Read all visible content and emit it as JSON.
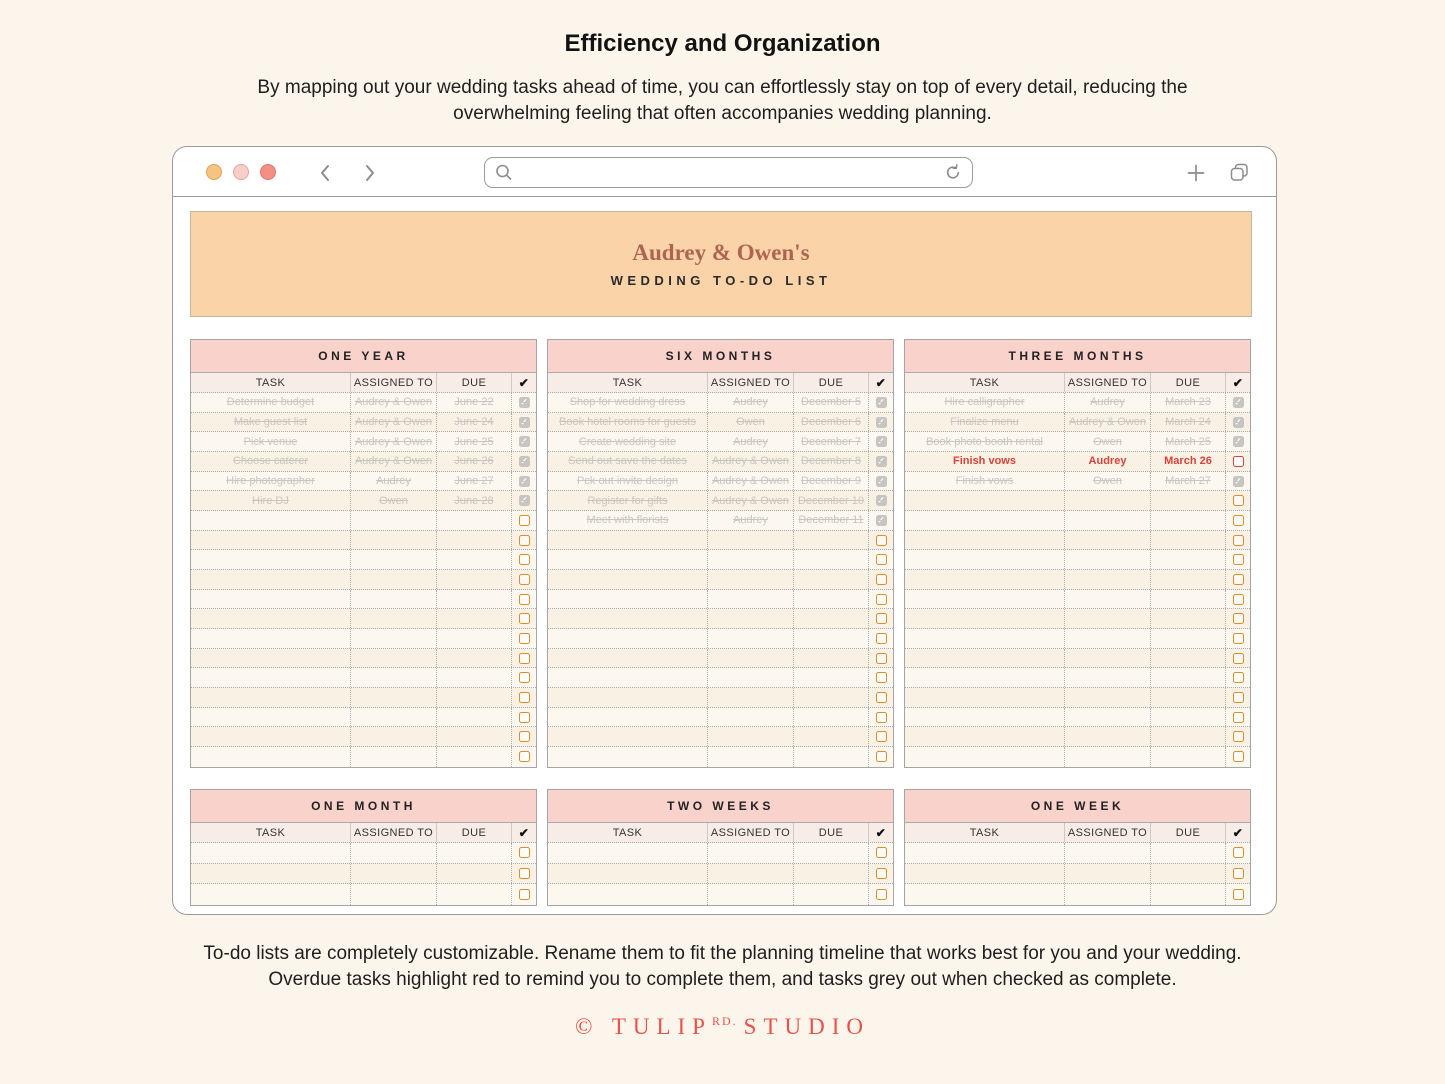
{
  "header": {
    "title": "Efficiency and Organization",
    "intro_lines": [
      "By mapping out your wedding tasks ahead of time, you can effortlessly stay on top of every detail, reducing the",
      "overwhelming feeling that often accompanies wedding planning."
    ]
  },
  "browser": {
    "search_value": "",
    "traffic_lights": [
      "orange",
      "pink",
      "red"
    ],
    "icons": [
      "back-chevron-icon",
      "forward-chevron-icon",
      "search-icon",
      "refresh-icon",
      "plus-icon",
      "tab-overview-icon"
    ]
  },
  "banner": {
    "title": "Audrey & Owen's",
    "subtitle": "WEDDING TO-DO LIST"
  },
  "table": {
    "columns": [
      "TASK",
      "ASSIGNED TO",
      "DUE",
      "✔"
    ],
    "check_glyph": "✓"
  },
  "panels": [
    {
      "title": "ONE YEAR",
      "row": "top",
      "empty_rows": 13,
      "tasks": [
        {
          "task": "Determine budget",
          "assigned": "Audrey & Owen",
          "due": "June 22",
          "status": "done"
        },
        {
          "task": "Make guest list",
          "assigned": "Audrey & Owen",
          "due": "June 24",
          "status": "done"
        },
        {
          "task": "Pick venue",
          "assigned": "Audrey & Owen",
          "due": "June 25",
          "status": "done"
        },
        {
          "task": "Choose caterer",
          "assigned": "Audrey & Owen",
          "due": "June 26",
          "status": "done"
        },
        {
          "task": "Hire photographer",
          "assigned": "Audrey",
          "due": "June 27",
          "status": "done"
        },
        {
          "task": "Hire DJ",
          "assigned": "Owen",
          "due": "June 28",
          "status": "done"
        }
      ]
    },
    {
      "title": "SIX MONTHS",
      "row": "top",
      "empty_rows": 12,
      "tasks": [
        {
          "task": "Shop for wedding dress",
          "assigned": "Audrey",
          "due": "December 5",
          "status": "done"
        },
        {
          "task": "Book hotel rooms for guests",
          "assigned": "Owen",
          "due": "December 6",
          "status": "done"
        },
        {
          "task": "Create wedding site",
          "assigned": "Audrey",
          "due": "December 7",
          "status": "done"
        },
        {
          "task": "Send out save the dates",
          "assigned": "Audrey & Owen",
          "due": "December 8",
          "status": "done"
        },
        {
          "task": "Pck out invite design",
          "assigned": "Audrey & Owen",
          "due": "December 9",
          "status": "done"
        },
        {
          "task": "Register for gifts",
          "assigned": "Audrey & Owen",
          "due": "December 10",
          "status": "done"
        },
        {
          "task": "Meet with florists",
          "assigned": "Audrey",
          "due": "December 11",
          "status": "done"
        }
      ]
    },
    {
      "title": "THREE MONTHS",
      "row": "top",
      "empty_rows": 14,
      "tasks": [
        {
          "task": "Hire calligrapher",
          "assigned": "Audrey",
          "due": "March 23",
          "status": "done"
        },
        {
          "task": "Finalize menu",
          "assigned": "Audrey & Owen",
          "due": "March 24",
          "status": "done"
        },
        {
          "task": "Book photo booth rental",
          "assigned": "Owen",
          "due": "March 25",
          "status": "done"
        },
        {
          "task": "Finish vows",
          "assigned": "Audrey",
          "due": "March 26",
          "status": "overdue"
        },
        {
          "task": "Finish vows",
          "assigned": "Owen",
          "due": "March 27",
          "status": "done"
        }
      ]
    },
    {
      "title": "ONE MONTH",
      "row": "bottom",
      "empty_rows": 3,
      "tasks": []
    },
    {
      "title": "TWO WEEKS",
      "row": "bottom",
      "empty_rows": 3,
      "tasks": []
    },
    {
      "title": "ONE WEEK",
      "row": "bottom",
      "empty_rows": 3,
      "tasks": []
    }
  ],
  "footer": {
    "note_lines": [
      "To-do lists are completely customizable. Rename them to fit the planning timeline that works best for you and your wedding.",
      "Overdue tasks highlight red to remind you to complete them, and tasks grey out when checked as complete."
    ],
    "logo": {
      "copyright": "©",
      "brand": "TULIP",
      "brand_sup": "RD.",
      "brand2": "STUDIO"
    }
  },
  "colors": {
    "page_bg": "#FCF5EC",
    "banner_bg": "#FBD3A8",
    "banner_title": "#AC6553",
    "panel_header_bg": "#F9D2CB",
    "column_header_bg": "#F8ECE7",
    "done_grey": "#C9C5C0",
    "overdue_red": "#D5433C",
    "overdue_row_bg": "#F5BCB6",
    "checkbox_orange": "#DE8D2B",
    "checkbox_done_bg": "#C7C5C2",
    "logo_red": "#E85348",
    "traffic_orange": "#F7C381",
    "traffic_pink": "#F9CDC8",
    "traffic_red": "#F29086"
  }
}
